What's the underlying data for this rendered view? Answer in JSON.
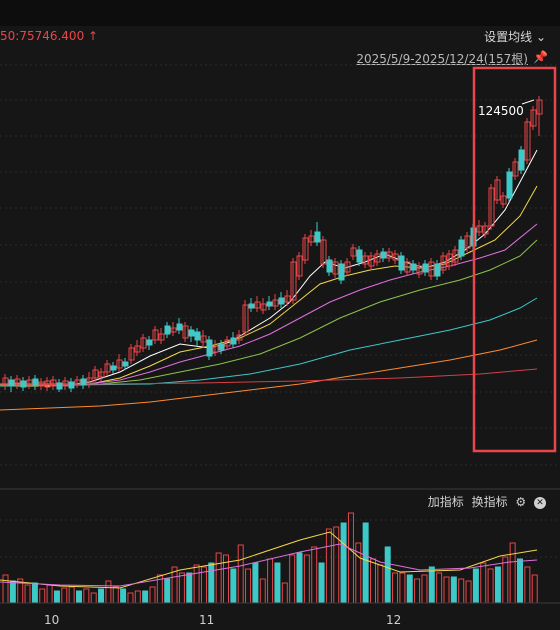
{
  "header": {
    "ma_readout": "50:75746.400 ↑",
    "ma_settings_label": "设置均线 ⌄",
    "range_label": "2025/5/9-2025/12/24(157根)",
    "pin_icon": "pin-icon"
  },
  "volume_toolbar": {
    "add_indicator": "加指标",
    "switch_indicator": "换指标",
    "settings_icon": "gear-icon",
    "close_icon": "close-icon"
  },
  "colors": {
    "up": "#e8464a",
    "down": "#3cc9c7",
    "highlight_box": "#e8464a"
  },
  "chart_data": [
    {
      "type": "candlestick",
      "annotations": [
        "124500"
      ],
      "x_tick_labels": [
        "10",
        "11",
        "12"
      ],
      "highlight": "last 11 candles (up to 124500)"
    },
    {
      "type": "bar",
      "title": "volume",
      "x_tick_labels": [
        "10",
        "11",
        "12"
      ]
    }
  ]
}
